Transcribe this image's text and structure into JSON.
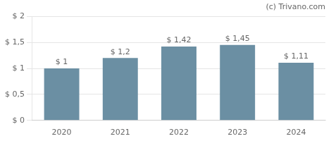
{
  "chart_data": {
    "type": "bar",
    "annotations": [
      "(c) Trivano.com"
    ],
    "categories": [
      "2020",
      "2021",
      "2022",
      "2023",
      "2024"
    ],
    "values": [
      1.0,
      1.2,
      1.42,
      1.45,
      1.11
    ],
    "value_labels": [
      "$ 1",
      "$ 1,2",
      "$ 1,42",
      "$ 1,45",
      "$ 1,11"
    ],
    "data_labels": true,
    "color": "#6b8fa3",
    "ylim": [
      0,
      2.0
    ],
    "yticks": [
      {
        "value": 0,
        "label": "$ 0"
      },
      {
        "value": 0.5,
        "label": "$ 0,5"
      },
      {
        "value": 1.0,
        "label": "$ 1"
      },
      {
        "value": 1.5,
        "label": "$ 1,5"
      },
      {
        "value": 2.0,
        "label": "$ 2"
      }
    ],
    "grid": "y"
  }
}
